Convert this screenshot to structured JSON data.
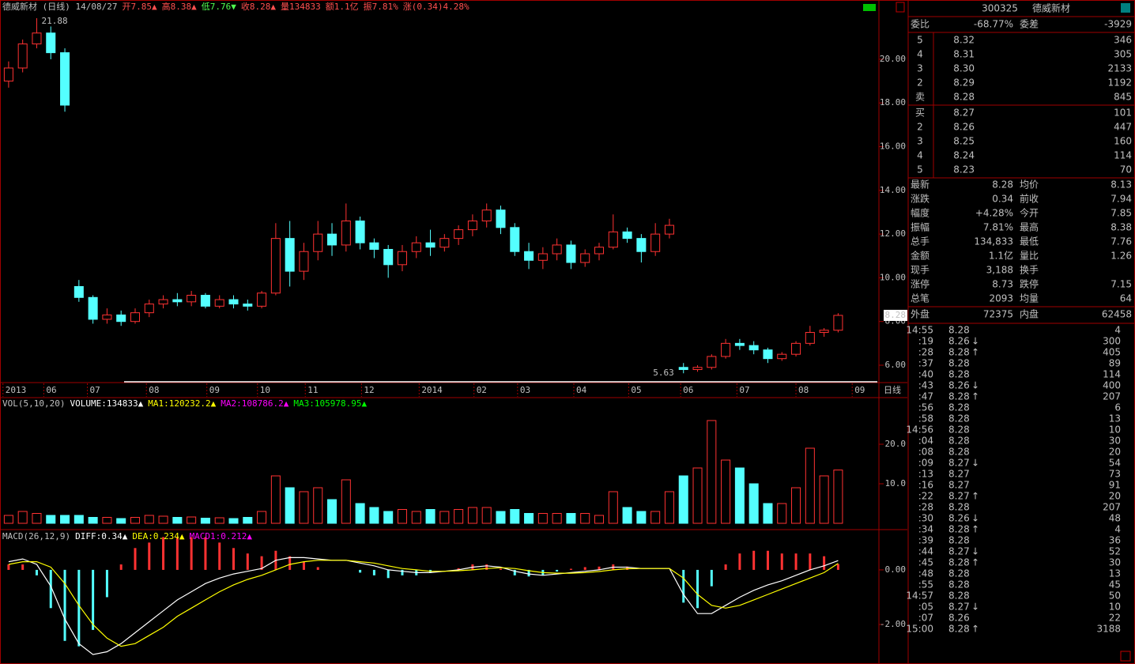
{
  "chart_data": [
    {
      "type": "candlestick",
      "header": [
        {
          "text": "德威新材 (日线) 14/08/27",
          "color": "#c0c0c0"
        },
        {
          "text": "开7.85▲",
          "color": "#ff5050"
        },
        {
          "text": "高8.38▲",
          "color": "#ff5050"
        },
        {
          "text": "低7.76▼",
          "color": "#50ff50"
        },
        {
          "text": "收8.28▲",
          "color": "#ff5050"
        },
        {
          "text": "量134833",
          "color": "#ff5050"
        },
        {
          "text": "额1.1亿",
          "color": "#ff5050"
        },
        {
          "text": "振7.81%",
          "color": "#ff5050"
        },
        {
          "text": "涨(0.34)4.28%",
          "color": "#ff5050"
        }
      ],
      "open": [
        19.0,
        19.6,
        20.7,
        21.2,
        20.3,
        9.6,
        9.1,
        8.1,
        8.3,
        8.0,
        8.4,
        8.8,
        9.0,
        8.9,
        9.2,
        8.7,
        9.0,
        8.8,
        8.7,
        9.3,
        11.8,
        10.3,
        11.2,
        12.0,
        11.5,
        12.6,
        11.6,
        11.3,
        10.6,
        11.2,
        11.6,
        11.4,
        11.8,
        12.2,
        12.6,
        13.1,
        12.3,
        11.2,
        10.8,
        11.1,
        11.5,
        10.7,
        11.1,
        11.4,
        12.1,
        11.8,
        11.2,
        12.0,
        5.9,
        5.8,
        5.9,
        6.4,
        7.0,
        6.9,
        6.7,
        6.3,
        6.5,
        7.0,
        7.5,
        7.6
      ],
      "high": [
        19.9,
        20.9,
        21.88,
        21.5,
        20.5,
        9.9,
        9.2,
        8.6,
        8.5,
        8.6,
        9.0,
        9.2,
        9.3,
        9.4,
        9.3,
        9.2,
        9.2,
        9.0,
        9.4,
        12.5,
        12.6,
        11.6,
        12.6,
        12.5,
        13.4,
        12.8,
        11.8,
        11.5,
        11.5,
        11.9,
        12.2,
        12.0,
        12.4,
        12.9,
        13.4,
        13.3,
        12.5,
        11.6,
        11.4,
        11.8,
        11.7,
        11.3,
        11.6,
        12.9,
        12.3,
        12.0,
        12.5,
        12.7,
        6.1,
        6.0,
        6.5,
        7.2,
        7.2,
        7.1,
        6.8,
        6.6,
        7.1,
        7.8,
        7.7,
        8.38
      ],
      "low": [
        18.7,
        19.4,
        20.5,
        20.0,
        17.6,
        8.9,
        7.9,
        7.9,
        7.8,
        7.9,
        8.2,
        8.6,
        8.7,
        8.7,
        8.6,
        8.6,
        8.6,
        8.5,
        8.6,
        9.2,
        9.6,
        9.9,
        10.8,
        11.0,
        11.2,
        11.3,
        10.9,
        10.0,
        10.3,
        10.9,
        11.0,
        11.2,
        11.5,
        11.9,
        12.3,
        12.0,
        11.0,
        10.4,
        10.4,
        10.8,
        10.4,
        10.5,
        10.8,
        11.3,
        11.6,
        10.7,
        11.0,
        11.8,
        5.63,
        5.7,
        5.8,
        6.3,
        6.7,
        6.5,
        6.1,
        6.2,
        6.4,
        6.9,
        7.3,
        7.5
      ],
      "close": [
        19.6,
        20.7,
        21.2,
        20.3,
        17.9,
        9.1,
        8.1,
        8.3,
        8.0,
        8.4,
        8.8,
        9.0,
        8.9,
        9.2,
        8.7,
        9.0,
        8.8,
        8.7,
        9.3,
        11.8,
        10.3,
        11.2,
        12.0,
        11.5,
        12.6,
        11.6,
        11.3,
        10.6,
        11.2,
        11.6,
        11.4,
        11.8,
        12.2,
        12.6,
        13.1,
        12.3,
        11.2,
        10.8,
        11.1,
        11.5,
        10.7,
        11.1,
        11.4,
        12.1,
        11.8,
        11.2,
        12.0,
        12.4,
        5.8,
        5.9,
        6.4,
        7.0,
        6.9,
        6.7,
        6.3,
        6.5,
        7.0,
        7.5,
        7.6,
        8.28
      ],
      "high_label": "21.88",
      "low_label": "5.63",
      "last_label": "8.28",
      "up_color": "#ff3232",
      "down_color": "#54ffff",
      "ylim": [
        5.24,
        22.06
      ],
      "yticks": [
        {
          "value": 6,
          "label": "6.00"
        },
        {
          "value": 8,
          "label": "8.00"
        },
        {
          "value": 10,
          "label": "10.00"
        },
        {
          "value": 12,
          "label": "12.00"
        },
        {
          "value": 14,
          "label": "14.00"
        },
        {
          "value": 16,
          "label": "16.00"
        },
        {
          "value": 18,
          "label": "18.00"
        },
        {
          "value": 20,
          "label": "20.00"
        }
      ],
      "xlim": [
        -0.5,
        61.9
      ],
      "xticks": [
        {
          "value": -0.4,
          "label": "2013"
        },
        {
          "value": 2.5,
          "label": "06"
        },
        {
          "value": 5.6,
          "label": "07"
        },
        {
          "value": 9.8,
          "label": "08"
        },
        {
          "value": 14.1,
          "label": "09"
        },
        {
          "value": 17.7,
          "label": "10"
        },
        {
          "value": 21.1,
          "label": "11"
        },
        {
          "value": 25.1,
          "label": "12"
        },
        {
          "value": 29.2,
          "label": "2014"
        },
        {
          "value": 33.1,
          "label": "02"
        },
        {
          "value": 36.2,
          "label": "03"
        },
        {
          "value": 40.2,
          "label": "04"
        },
        {
          "value": 44.1,
          "label": "05"
        },
        {
          "value": 47.8,
          "label": "06"
        },
        {
          "value": 51.8,
          "label": "07"
        },
        {
          "value": 56.0,
          "label": "08"
        },
        {
          "value": 60.0,
          "label": "09"
        }
      ],
      "period_label": "日线"
    },
    {
      "type": "bar",
      "header": [
        {
          "text": "VOL(5,10,20)",
          "color": "#c0c0c0"
        },
        {
          "text": "VOLUME:134833▲",
          "color": "#ffffff"
        },
        {
          "text": "MA1:120232.2▲",
          "color": "#ffff00"
        },
        {
          "text": "MA2:108786.2▲",
          "color": "#ff00ff"
        },
        {
          "text": "MA3:105978.95▲",
          "color": "#00ff00"
        }
      ],
      "values": [
        2,
        3,
        2.5,
        2,
        2,
        2,
        1.5,
        1.5,
        1.2,
        1.5,
        2,
        1.8,
        1.5,
        1.6,
        1.3,
        1.4,
        1.2,
        1.5,
        3,
        12,
        9,
        8,
        9,
        6,
        11,
        5,
        4,
        3,
        3.5,
        3,
        3.5,
        3,
        3.5,
        4,
        4,
        3,
        3.5,
        2.5,
        2.5,
        2.5,
        2.5,
        2.5,
        2,
        8,
        4,
        3,
        3,
        8,
        12,
        14,
        26,
        16,
        14,
        10,
        5,
        5,
        9,
        19,
        12,
        13.48
      ],
      "ylim": [
        0,
        29.4
      ],
      "yticks": [
        {
          "value": 10,
          "label": "10.0"
        },
        {
          "value": 20,
          "label": "20.0"
        }
      ]
    },
    {
      "type": "macd",
      "header": [
        {
          "text": "MACD(26,12,9)",
          "color": "#c0c0c0"
        },
        {
          "text": "DIFF:0.34▲",
          "color": "#ffffff"
        },
        {
          "text": "DEA:0.234▲",
          "color": "#ffff00"
        },
        {
          "text": "MACD1:0.212▲",
          "color": "#ff00ff"
        }
      ],
      "hist": [
        0.2,
        0.2,
        -0.2,
        -1.4,
        -2.6,
        -2.8,
        -2.2,
        -1.0,
        0.2,
        0.8,
        1.0,
        1.2,
        1.2,
        1.2,
        1.2,
        1.0,
        0.8,
        0.6,
        0.5,
        0.7,
        0.5,
        0.3,
        0.1,
        0.0,
        0.0,
        -0.1,
        -0.2,
        -0.3,
        -0.2,
        -0.2,
        -0.1,
        0.0,
        0.06,
        0.2,
        0.2,
        0.04,
        -0.2,
        -0.24,
        -0.2,
        -0.06,
        0.04,
        0.1,
        0.12,
        0.2,
        0.12,
        0.0,
        0.0,
        0.0,
        -1.2,
        -1.4,
        -0.6,
        0.2,
        0.6,
        0.7,
        0.7,
        0.6,
        0.6,
        0.6,
        0.5,
        0.212
      ],
      "diff": [
        0.3,
        0.4,
        0.2,
        -0.6,
        -1.8,
        -2.7,
        -3.1,
        -3.0,
        -2.7,
        -2.3,
        -1.9,
        -1.5,
        -1.1,
        -0.8,
        -0.5,
        -0.3,
        -0.15,
        -0.05,
        0.05,
        0.35,
        0.45,
        0.45,
        0.4,
        0.35,
        0.35,
        0.25,
        0.15,
        0.0,
        -0.05,
        -0.1,
        -0.1,
        -0.05,
        0.0,
        0.1,
        0.15,
        0.1,
        -0.05,
        -0.15,
        -0.2,
        -0.15,
        -0.1,
        -0.05,
        0.0,
        0.1,
        0.1,
        0.05,
        0.05,
        0.05,
        -0.9,
        -1.6,
        -1.6,
        -1.3,
        -1.0,
        -0.75,
        -0.55,
        -0.4,
        -0.2,
        0.0,
        0.15,
        0.34
      ],
      "dea": [
        0.2,
        0.3,
        0.3,
        0.1,
        -0.5,
        -1.3,
        -2.0,
        -2.5,
        -2.8,
        -2.7,
        -2.4,
        -2.1,
        -1.7,
        -1.4,
        -1.1,
        -0.8,
        -0.55,
        -0.35,
        -0.2,
        0.0,
        0.2,
        0.3,
        0.35,
        0.35,
        0.35,
        0.3,
        0.25,
        0.15,
        0.05,
        0.0,
        -0.05,
        -0.05,
        -0.03,
        0.0,
        0.05,
        0.08,
        0.05,
        -0.03,
        -0.1,
        -0.12,
        -0.12,
        -0.1,
        -0.06,
        0.0,
        0.04,
        0.05,
        0.05,
        0.05,
        -0.3,
        -0.9,
        -1.3,
        -1.4,
        -1.3,
        -1.1,
        -0.9,
        -0.7,
        -0.5,
        -0.3,
        -0.1,
        0.234
      ],
      "diff_color": "#ffffff",
      "dea_color": "#ffff00",
      "ylim": [
        -3.39,
        1.33
      ],
      "yticks": [
        {
          "value": 0,
          "label": "0.00"
        },
        {
          "value": -2,
          "label": "-2.00"
        }
      ]
    }
  ],
  "quote": {
    "code": "300325",
    "name": "德威新材",
    "ratio": [
      "委比",
      "-68.77%",
      "委差",
      "-3929"
    ],
    "asks": [
      [
        "5",
        "8.32",
        "346"
      ],
      [
        "4",
        "8.31",
        "305"
      ],
      [
        "3",
        "8.30",
        "2133"
      ],
      [
        "2",
        "8.29",
        "1192"
      ],
      [
        "卖",
        "8.28",
        "845"
      ]
    ],
    "bids": [
      [
        "买",
        "8.27",
        "101"
      ],
      [
        "2",
        "8.26",
        "447"
      ],
      [
        "3",
        "8.25",
        "160"
      ],
      [
        "4",
        "8.24",
        "114"
      ],
      [
        "5",
        "8.23",
        "70"
      ]
    ],
    "stats": [
      [
        "最新",
        "8.28",
        "均价",
        "8.13"
      ],
      [
        "涨跌",
        "0.34",
        "前收",
        "7.94"
      ],
      [
        "幅度",
        "+4.28%",
        "今开",
        "7.85"
      ],
      [
        "振幅",
        "7.81%",
        "最高",
        "8.38"
      ],
      [
        "总手",
        "134,833",
        "最低",
        "7.76"
      ],
      [
        "金额",
        "1.1亿",
        "量比",
        "1.26"
      ],
      [
        "现手",
        "3,188",
        "换手"
      ],
      [
        "涨停",
        "8.73",
        "跌停",
        "7.15"
      ],
      [
        "总笔",
        "2093",
        "均量",
        "64"
      ]
    ],
    "outer": [
      "外盘",
      "72375",
      "内盘",
      "62458"
    ],
    "ticks": [
      {
        "time": "14:55",
        "price": "8.28",
        "volume": "4"
      },
      {
        "time": ":19",
        "price": "8.26",
        "dir": "↓",
        "volume": "300"
      },
      {
        "time": ":28",
        "price": "8.28",
        "dir": "↑",
        "volume": "405"
      },
      {
        "time": ":37",
        "price": "8.28",
        "volume": "89"
      },
      {
        "time": ":40",
        "price": "8.28",
        "volume": "114"
      },
      {
        "time": ":43",
        "price": "8.26",
        "dir": "↓",
        "volume": "400"
      },
      {
        "time": ":47",
        "price": "8.28",
        "dir": "↑",
        "volume": "207"
      },
      {
        "time": ":56",
        "price": "8.28",
        "volume": "6"
      },
      {
        "time": ":58",
        "price": "8.28",
        "volume": "13"
      },
      {
        "time": "14:56",
        "price": "8.28",
        "volume": "10"
      },
      {
        "time": ":04",
        "price": "8.28",
        "volume": "30"
      },
      {
        "time": ":08",
        "price": "8.28",
        "volume": "20"
      },
      {
        "time": ":09",
        "price": "8.27",
        "dir": "↓",
        "volume": "54"
      },
      {
        "time": ":13",
        "price": "8.27",
        "volume": "73"
      },
      {
        "time": ":16",
        "price": "8.27",
        "volume": "91"
      },
      {
        "time": ":22",
        "price": "8.27",
        "dir": "↑",
        "volume": "20"
      },
      {
        "time": ":28",
        "price": "8.28",
        "volume": "207"
      },
      {
        "time": ":30",
        "price": "8.26",
        "dir": "↓",
        "volume": "48"
      },
      {
        "time": ":34",
        "price": "8.28",
        "dir": "↑",
        "volume": "4"
      },
      {
        "time": ":39",
        "price": "8.28",
        "volume": "36"
      },
      {
        "time": ":44",
        "price": "8.27",
        "dir": "↓",
        "volume": "52"
      },
      {
        "time": ":45",
        "price": "8.28",
        "dir": "↑",
        "volume": "30"
      },
      {
        "time": ":48",
        "price": "8.28",
        "volume": "13"
      },
      {
        "time": ":55",
        "price": "8.28",
        "volume": "45"
      },
      {
        "time": "14:57",
        "price": "8.28",
        "volume": "50"
      },
      {
        "time": ":05",
        "price": "8.27",
        "dir": "↓",
        "volume": "10"
      },
      {
        "time": ":07",
        "price": "8.26",
        "volume": "22"
      },
      {
        "time": "15:00",
        "price": "8.28",
        "dir": "↑",
        "volume": "3188"
      }
    ]
  }
}
